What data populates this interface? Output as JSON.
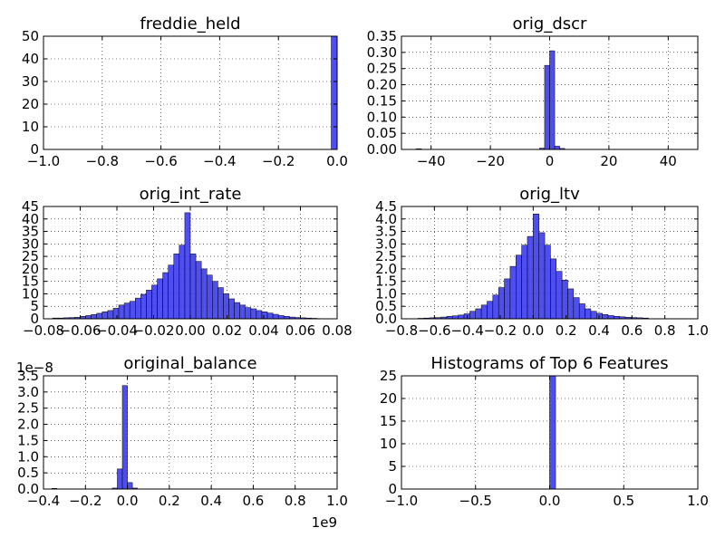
{
  "chart_data": [
    {
      "type": "bar",
      "title": "freddie_held",
      "xlim": [
        -1.0,
        0.0
      ],
      "ylim": [
        0,
        50
      ],
      "xticks": [
        -1.0,
        -0.8,
        -0.6,
        -0.4,
        -0.2,
        0.0
      ],
      "xtick_labels": [
        "−1.0",
        "−0.8",
        "−0.6",
        "−0.4",
        "−0.2",
        "0.0"
      ],
      "yticks": [
        0,
        10,
        20,
        30,
        40,
        50
      ],
      "ytick_labels": [
        "0",
        "10",
        "20",
        "30",
        "40",
        "50"
      ],
      "offset_label": "",
      "grid": true,
      "bin_width": 0.02,
      "bin_starts": [
        -0.02
      ],
      "values": [
        50
      ],
      "bar_color": "#3b3bf0"
    },
    {
      "type": "bar",
      "title": "orig_dscr",
      "xlim": [
        -50,
        50
      ],
      "ylim": [
        0,
        0.35
      ],
      "xticks": [
        -40,
        -20,
        0,
        20,
        40
      ],
      "xtick_labels": [
        "−40",
        "−20",
        "0",
        "20",
        "40"
      ],
      "yticks": [
        0,
        0.05,
        0.1,
        0.15,
        0.2,
        0.25,
        0.3,
        0.35
      ],
      "ytick_labels": [
        "0.00",
        "0.05",
        "0.10",
        "0.15",
        "0.20",
        "0.25",
        "0.30",
        "0.35"
      ],
      "offset_label": "",
      "grid": true,
      "bin_width": 1.7,
      "bin_starts": [
        -45,
        -3.4,
        -1.7,
        0,
        1.7,
        3.4
      ],
      "values": [
        0.002,
        0.004,
        0.26,
        0.305,
        0.01,
        0.003
      ],
      "bar_color": "#3b3bf0"
    },
    {
      "type": "bar",
      "title": "orig_int_rate",
      "xlim": [
        -0.08,
        0.08
      ],
      "ylim": [
        0,
        45
      ],
      "xticks": [
        -0.08,
        -0.06,
        -0.04,
        -0.02,
        0.0,
        0.02,
        0.04,
        0.06,
        0.08
      ],
      "xtick_labels": [
        "−0.08",
        "−0.06",
        "−0.04",
        "−0.02",
        "0.00",
        "0.02",
        "0.04",
        "0.06",
        "0.08"
      ],
      "yticks": [
        0,
        5,
        10,
        15,
        20,
        25,
        30,
        35,
        40,
        45
      ],
      "ytick_labels": [
        "0",
        "5",
        "10",
        "15",
        "20",
        "25",
        "30",
        "35",
        "40",
        "45"
      ],
      "offset_label": "",
      "grid": true,
      "bin_width": 0.003,
      "bin_starts": [
        -0.075,
        -0.072,
        -0.069,
        -0.066,
        -0.063,
        -0.06,
        -0.057,
        -0.054,
        -0.051,
        -0.048,
        -0.045,
        -0.042,
        -0.039,
        -0.036,
        -0.033,
        -0.03,
        -0.027,
        -0.024,
        -0.021,
        -0.018,
        -0.015,
        -0.012,
        -0.009,
        -0.006,
        -0.003,
        0.0,
        0.003,
        0.006,
        0.009,
        0.012,
        0.015,
        0.018,
        0.021,
        0.024,
        0.027,
        0.03,
        0.033,
        0.036,
        0.039,
        0.042,
        0.045,
        0.048,
        0.051,
        0.054,
        0.057,
        0.06,
        0.063,
        0.066,
        0.069
      ],
      "values": [
        0.3,
        0.3,
        0.4,
        0.5,
        0.6,
        1.0,
        1.3,
        1.7,
        2.2,
        2.8,
        3.3,
        4.2,
        5.5,
        6.3,
        7.0,
        8.3,
        9.8,
        11.5,
        13.5,
        16.0,
        18.5,
        21.5,
        26.0,
        29.5,
        42.5,
        26.0,
        23.0,
        20.0,
        17.5,
        15.0,
        12.5,
        10.0,
        8.0,
        6.5,
        5.5,
        4.5,
        4.0,
        3.3,
        2.8,
        2.3,
        1.8,
        1.3,
        1.0,
        0.7,
        0.5,
        0.4,
        0.3,
        0.2,
        0.1
      ],
      "bar_color": "#3b3bf0"
    },
    {
      "type": "bar",
      "title": "orig_ltv",
      "xlim": [
        -0.8,
        1.0
      ],
      "ylim": [
        0,
        4.5
      ],
      "xticks": [
        -0.8,
        -0.6,
        -0.4,
        -0.2,
        0.0,
        0.2,
        0.4,
        0.6,
        0.8,
        1.0
      ],
      "xtick_labels": [
        "−0.8",
        "−0.6",
        "−0.4",
        "−0.2",
        "0.0",
        "0.2",
        "0.4",
        "0.6",
        "0.8",
        "1.0"
      ],
      "yticks": [
        0,
        0.5,
        1.0,
        1.5,
        2.0,
        2.5,
        3.0,
        3.5,
        4.0,
        4.5
      ],
      "ytick_labels": [
        "0.0",
        "0.5",
        "1.0",
        "1.5",
        "2.0",
        "2.5",
        "3.0",
        "3.5",
        "4.0",
        "4.5"
      ],
      "offset_label": "",
      "grid": true,
      "bin_width": 0.035,
      "bin_starts": [
        -0.7,
        -0.665,
        -0.63,
        -0.595,
        -0.56,
        -0.525,
        -0.49,
        -0.455,
        -0.42,
        -0.385,
        -0.35,
        -0.315,
        -0.28,
        -0.245,
        -0.21,
        -0.175,
        -0.14,
        -0.105,
        -0.07,
        -0.035,
        0.0,
        0.035,
        0.07,
        0.105,
        0.14,
        0.175,
        0.21,
        0.245,
        0.28,
        0.315,
        0.35,
        0.385,
        0.42,
        0.455,
        0.49,
        0.525,
        0.56,
        0.595,
        0.63,
        0.665
      ],
      "values": [
        0.02,
        0.03,
        0.04,
        0.05,
        0.07,
        0.1,
        0.12,
        0.15,
        0.2,
        0.3,
        0.4,
        0.55,
        0.7,
        0.95,
        1.25,
        1.6,
        2.1,
        2.55,
        2.95,
        3.3,
        4.2,
        3.45,
        2.95,
        2.4,
        1.9,
        1.55,
        1.2,
        0.85,
        0.6,
        0.4,
        0.3,
        0.22,
        0.17,
        0.13,
        0.1,
        0.08,
        0.06,
        0.05,
        0.04,
        0.03
      ],
      "bar_color": "#3b3bf0"
    },
    {
      "type": "bar",
      "title": "original_balance",
      "xlim": [
        -0.4,
        1.0
      ],
      "ylim": [
        0,
        3.5
      ],
      "xticks": [
        -0.4,
        -0.2,
        0.0,
        0.2,
        0.4,
        0.6,
        0.8,
        1.0
      ],
      "xtick_labels": [
        "−0.4",
        "−0.2",
        "0.0",
        "0.2",
        "0.4",
        "0.6",
        "0.8",
        "1.0"
      ],
      "yticks": [
        0,
        0.5,
        1.0,
        1.5,
        2.0,
        2.5,
        3.0,
        3.5
      ],
      "ytick_labels": [
        "0.0",
        "0.5",
        "1.0",
        "1.5",
        "2.0",
        "2.5",
        "3.0",
        "3.5"
      ],
      "y_offset_label": "1e−8",
      "x_offset_label": "1e9",
      "grid": true,
      "bin_width": 0.024,
      "bin_starts": [
        -0.36,
        -0.072,
        -0.048,
        -0.024,
        0.0,
        0.024
      ],
      "values": [
        0.02,
        0.03,
        0.62,
        3.2,
        0.2,
        0.03
      ],
      "bar_color": "#3b3bf0"
    },
    {
      "type": "bar",
      "title": "Histograms of Top 6 Features",
      "xlim": [
        -1.0,
        1.0
      ],
      "ylim": [
        0,
        25
      ],
      "xticks": [
        -1.0,
        -0.5,
        0.0,
        0.5,
        1.0
      ],
      "xtick_labels": [
        "−1.0",
        "−0.5",
        "0.0",
        "0.5",
        "1.0"
      ],
      "yticks": [
        0,
        5,
        10,
        15,
        20,
        25
      ],
      "ytick_labels": [
        "0",
        "5",
        "10",
        "15",
        "20",
        "25"
      ],
      "offset_label": "",
      "grid": true,
      "bin_width": 0.04,
      "bin_starts": [
        0.0
      ],
      "values": [
        25
      ],
      "bar_color": "#3b3bf0"
    }
  ]
}
